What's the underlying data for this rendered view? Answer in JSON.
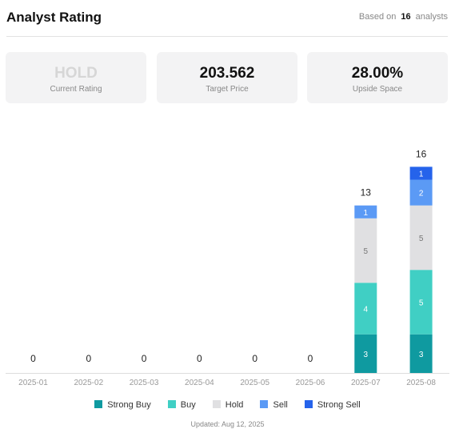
{
  "header": {
    "title": "Analyst Rating",
    "based_prefix": "Based on",
    "analyst_count": "16",
    "based_suffix": "analysts"
  },
  "cards": [
    {
      "value": "HOLD",
      "label": "Current Rating"
    },
    {
      "value": "203.562",
      "label": "Target Price"
    },
    {
      "value": "28.00%",
      "label": "Upside Space"
    }
  ],
  "colors": {
    "strong_buy": "#0f9aa0",
    "buy": "#40cfc4",
    "hold": "#e0e0e2",
    "sell": "#5b9af5",
    "strong_sell": "#2563eb"
  },
  "chart_data": {
    "type": "bar",
    "stacked": true,
    "categories": [
      "2025-01",
      "2025-02",
      "2025-03",
      "2025-04",
      "2025-05",
      "2025-06",
      "2025-07",
      "2025-08"
    ],
    "series": [
      {
        "name": "Strong Buy",
        "key": "strong_buy",
        "values": [
          0,
          0,
          0,
          0,
          0,
          0,
          3,
          3
        ]
      },
      {
        "name": "Buy",
        "key": "buy",
        "values": [
          0,
          0,
          0,
          0,
          0,
          0,
          4,
          5
        ]
      },
      {
        "name": "Hold",
        "key": "hold",
        "values": [
          0,
          0,
          0,
          0,
          0,
          0,
          5,
          5
        ]
      },
      {
        "name": "Sell",
        "key": "sell",
        "values": [
          0,
          0,
          0,
          0,
          0,
          0,
          1,
          2
        ]
      },
      {
        "name": "Strong Sell",
        "key": "strong_sell",
        "values": [
          0,
          0,
          0,
          0,
          0,
          0,
          0,
          1
        ]
      }
    ],
    "totals": [
      0,
      0,
      0,
      0,
      0,
      0,
      13,
      16
    ],
    "legend_position": "bottom",
    "grid": false
  },
  "footer": {
    "updated": "Updated: Aug 12, 2025"
  }
}
